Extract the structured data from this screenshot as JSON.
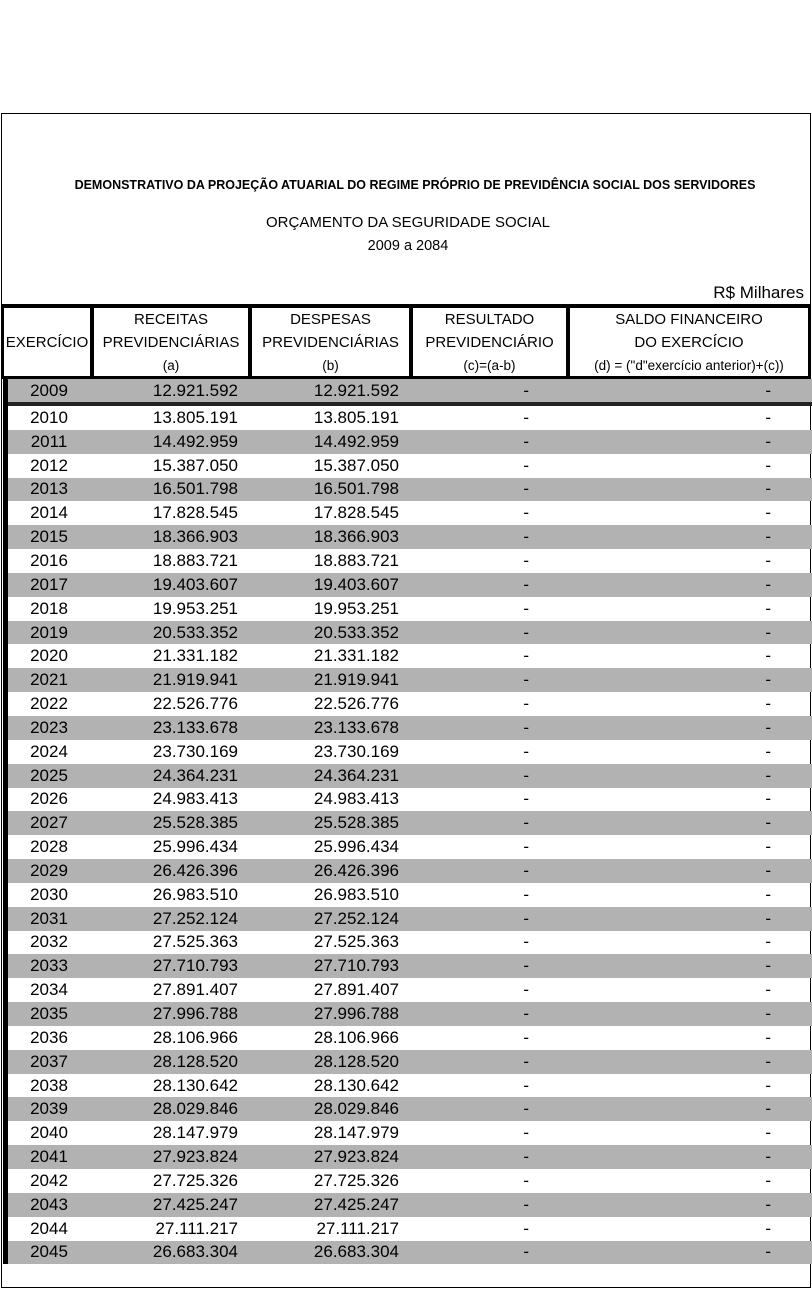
{
  "document": {
    "title": "DEMONSTRATIVO DA PROJEÇÃO ATUARIAL DO REGIME PRÓPRIO DE PREVIDÊNCIA SOCIAL DOS SERVIDORES",
    "subtitle": "ORÇAMENTO DA SEGURIDADE SOCIAL",
    "period": "2009 a 2084",
    "unit": "R$ Milhares"
  },
  "table": {
    "columns": [
      {
        "lines": [
          "EXERCÍCIO"
        ],
        "note": ""
      },
      {
        "lines": [
          "RECEITAS",
          "PREVIDENCIÁRIAS"
        ],
        "note": "(a)"
      },
      {
        "lines": [
          "DESPESAS",
          "PREVIDENCIÁRIAS"
        ],
        "note": "(b)"
      },
      {
        "lines": [
          "RESULTADO",
          "PREVIDENCIÁRIO"
        ],
        "note": "(c)=(a-b)"
      },
      {
        "lines": [
          "SALDO FINANCEIRO",
          "DO EXERCÍCIO"
        ],
        "note": "(d) = (\"d\"exercício anterior)+(c))"
      }
    ],
    "row_colors": {
      "gray": "#b2b2b2",
      "white": "#ffffff"
    },
    "rows": [
      [
        "2009",
        "12.921.592",
        "12.921.592",
        "-",
        "-"
      ],
      [
        "2010",
        "13.805.191",
        "13.805.191",
        "-",
        "-"
      ],
      [
        "2011",
        "14.492.959",
        "14.492.959",
        "-",
        "-"
      ],
      [
        "2012",
        "15.387.050",
        "15.387.050",
        "-",
        "-"
      ],
      [
        "2013",
        "16.501.798",
        "16.501.798",
        "-",
        "-"
      ],
      [
        "2014",
        "17.828.545",
        "17.828.545",
        "-",
        "-"
      ],
      [
        "2015",
        "18.366.903",
        "18.366.903",
        "-",
        "-"
      ],
      [
        "2016",
        "18.883.721",
        "18.883.721",
        "-",
        "-"
      ],
      [
        "2017",
        "19.403.607",
        "19.403.607",
        "-",
        "-"
      ],
      [
        "2018",
        "19.953.251",
        "19.953.251",
        "-",
        "-"
      ],
      [
        "2019",
        "20.533.352",
        "20.533.352",
        "-",
        "-"
      ],
      [
        "2020",
        "21.331.182",
        "21.331.182",
        "-",
        "-"
      ],
      [
        "2021",
        "21.919.941",
        "21.919.941",
        "-",
        "-"
      ],
      [
        "2022",
        "22.526.776",
        "22.526.776",
        "-",
        "-"
      ],
      [
        "2023",
        "23.133.678",
        "23.133.678",
        "-",
        "-"
      ],
      [
        "2024",
        "23.730.169",
        "23.730.169",
        "-",
        "-"
      ],
      [
        "2025",
        "24.364.231",
        "24.364.231",
        "-",
        "-"
      ],
      [
        "2026",
        "24.983.413",
        "24.983.413",
        "-",
        "-"
      ],
      [
        "2027",
        "25.528.385",
        "25.528.385",
        "-",
        "-"
      ],
      [
        "2028",
        "25.996.434",
        "25.996.434",
        "-",
        "-"
      ],
      [
        "2029",
        "26.426.396",
        "26.426.396",
        "-",
        "-"
      ],
      [
        "2030",
        "26.983.510",
        "26.983.510",
        "-",
        "-"
      ],
      [
        "2031",
        "27.252.124",
        "27.252.124",
        "-",
        "-"
      ],
      [
        "2032",
        "27.525.363",
        "27.525.363",
        "-",
        "-"
      ],
      [
        "2033",
        "27.710.793",
        "27.710.793",
        "-",
        "-"
      ],
      [
        "2034",
        "27.891.407",
        "27.891.407",
        "-",
        "-"
      ],
      [
        "2035",
        "27.996.788",
        "27.996.788",
        "-",
        "-"
      ],
      [
        "2036",
        "28.106.966",
        "28.106.966",
        "-",
        "-"
      ],
      [
        "2037",
        "28.128.520",
        "28.128.520",
        "-",
        "-"
      ],
      [
        "2038",
        "28.130.642",
        "28.130.642",
        "-",
        "-"
      ],
      [
        "2039",
        "28.029.846",
        "28.029.846",
        "-",
        "-"
      ],
      [
        "2040",
        "28.147.979",
        "28.147.979",
        "-",
        "-"
      ],
      [
        "2041",
        "27.923.824",
        "27.923.824",
        "-",
        "-"
      ],
      [
        "2042",
        "27.725.326",
        "27.725.326",
        "-",
        "-"
      ],
      [
        "2043",
        "27.425.247",
        "27.425.247",
        "-",
        "-"
      ],
      [
        "2044",
        "27.111.217",
        "27.111.217",
        "-",
        "-"
      ],
      [
        "2045",
        "26.683.304",
        "26.683.304",
        "-",
        "-"
      ]
    ]
  }
}
